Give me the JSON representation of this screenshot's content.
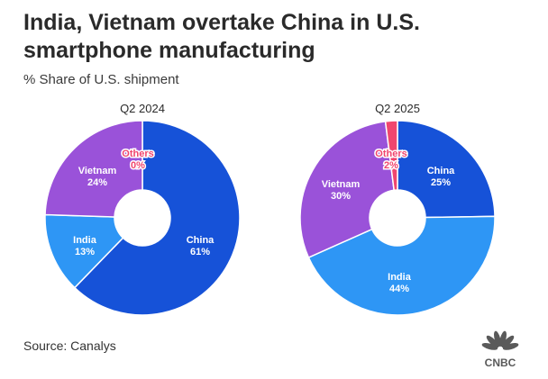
{
  "header": {
    "title": "India, Vietnam overtake China in U.S. smartphone manufacturing",
    "subtitle": "% Share of U.S. shipment"
  },
  "footer": {
    "source": "Source: Canalys",
    "brand": "CNBC"
  },
  "colors": {
    "China": "#1652d8",
    "India": "#2e96f5",
    "Vietnam": "#9a52d9",
    "Others": "#f0466e",
    "logo": "#5a5a5a"
  },
  "chart_data": [
    {
      "type": "pie",
      "title": "Q2 2024",
      "categories": [
        "China",
        "India",
        "Vietnam",
        "Others"
      ],
      "values": [
        61,
        13,
        24,
        0
      ],
      "labels": [
        "61%",
        "13%",
        "24%",
        "0%"
      ],
      "order_clockwise_from_top": [
        "China",
        "India",
        "Vietnam",
        "Others"
      ],
      "donut": true
    },
    {
      "type": "pie",
      "title": "Q2 2025",
      "categories": [
        "China",
        "India",
        "Vietnam",
        "Others"
      ],
      "values": [
        25,
        44,
        30,
        2
      ],
      "labels": [
        "25%",
        "44%",
        "30%",
        "2%"
      ],
      "order_clockwise_from_top": [
        "China",
        "India",
        "Vietnam",
        "Others"
      ],
      "donut": true
    }
  ]
}
